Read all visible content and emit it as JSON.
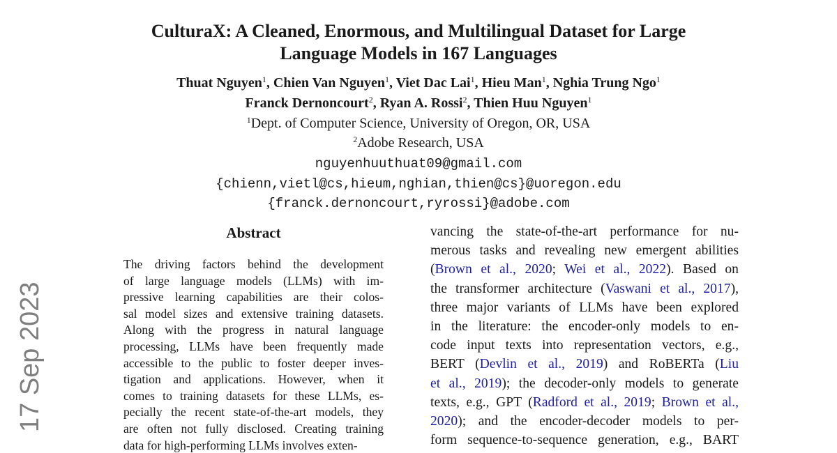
{
  "paper": {
    "title_line1": "CulturaX: A Cleaned, Enormous, and Multilingual Dataset for Large",
    "title_line2": "Language Models in 167 Languages",
    "authors_line1": [
      {
        "name": "Thuat Nguyen",
        "sup": "1"
      },
      {
        "name": "Chien Van Nguyen",
        "sup": "1"
      },
      {
        "name": "Viet Dac Lai",
        "sup": "1"
      },
      {
        "name": "Hieu Man",
        "sup": "1"
      },
      {
        "name": "Nghia Trung Ngo",
        "sup": "1"
      }
    ],
    "authors_line2": [
      {
        "name": "Franck Dernoncourt",
        "sup": "2"
      },
      {
        "name": "Ryan A. Rossi",
        "sup": "2"
      },
      {
        "name": "Thien Huu Nguyen",
        "sup": "1"
      }
    ],
    "affiliation1": {
      "sup": "1",
      "text": "Dept. of Computer Science, University of Oregon, OR, USA"
    },
    "affiliation2": {
      "sup": "2",
      "text": "Adobe Research, USA"
    },
    "emails": [
      "nguyenhuuthuat09@gmail.com",
      "{chienn,vietl@cs,hieum,nghian,thien@cs}@uoregon.edu",
      "{franck.dernoncourt,ryrossi}@adobe.com"
    ],
    "abstract_heading": "Abstract",
    "abstract_lines": [
      "The driving factors behind the development",
      "of large language models (LLMs) with im-",
      "pressive learning capabilities are their colos-",
      "sal model sizes and extensive training datasets.",
      "Along with the progress in natural language",
      "processing, LLMs have been frequently made",
      "accessible to the public to foster deeper inves-",
      "tigation and applications.  However, when it",
      "comes to training datasets for these LLMs, es-",
      "pecially the recent state-of-the-art models, they",
      "are often not fully disclosed. Creating training",
      "data for high-performing LLMs involves exten-"
    ],
    "right_lines": [
      [
        {
          "t": "vancing the state-of-the-art performance for nu-"
        }
      ],
      [
        {
          "t": "merous tasks and revealing new emergent abilities"
        }
      ],
      [
        {
          "t": "("
        },
        {
          "t": "Brown et al., 2020",
          "link": true
        },
        {
          "t": "; "
        },
        {
          "t": "Wei et al., 2022",
          "link": true
        },
        {
          "t": ").  Based on"
        }
      ],
      [
        {
          "t": "the transformer architecture ("
        },
        {
          "t": "Vaswani et al., 2017",
          "link": true
        },
        {
          "t": "),"
        }
      ],
      [
        {
          "t": "three major variants of LLMs have been explored"
        }
      ],
      [
        {
          "t": "in the literature:  the encoder-only models to en-"
        }
      ],
      [
        {
          "t": "code input texts into representation vectors, e.g.,"
        }
      ],
      [
        {
          "t": "BERT ("
        },
        {
          "t": "Devlin et al., 2019",
          "link": true
        },
        {
          "t": ") and RoBERTa ("
        },
        {
          "t": "Liu",
          "link": true
        }
      ],
      [
        {
          "t": "et al., 2019",
          "link": true
        },
        {
          "t": "); the decoder-only models to generate"
        }
      ],
      [
        {
          "t": "texts, e.g., GPT ("
        },
        {
          "t": "Radford et al., 2019",
          "link": true
        },
        {
          "t": "; "
        },
        {
          "t": "Brown et al.,",
          "link": true
        }
      ],
      [
        {
          "t": "2020",
          "link": true
        },
        {
          "t": ");  and the encoder-decoder models to per-"
        }
      ],
      [
        {
          "t": "form sequence-to-sequence generation, e.g., BART"
        }
      ]
    ]
  },
  "arxiv_stamp": "17 Sep 2023",
  "colors": {
    "citation": "#1f1fa0",
    "stamp": "#7f7f7f",
    "text": "#1a1a1a"
  }
}
